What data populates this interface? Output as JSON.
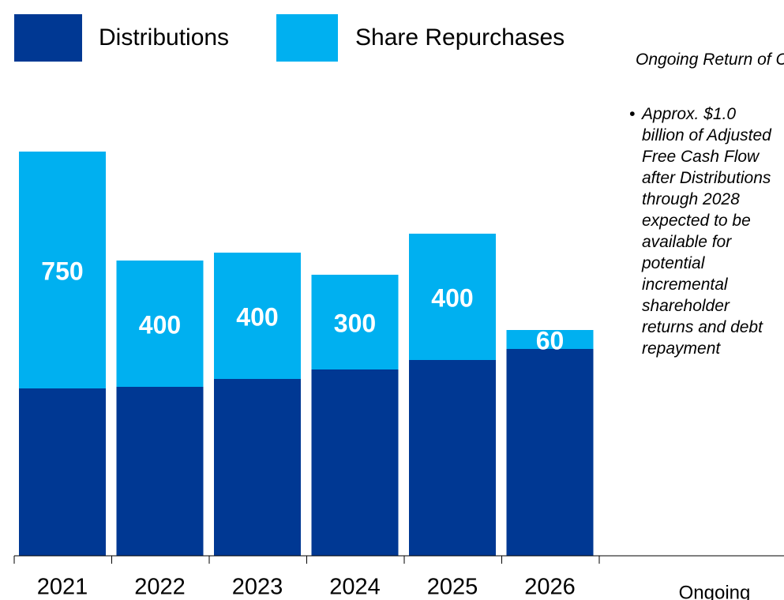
{
  "chart_data": {
    "type": "stacked_bar",
    "categories": [
      "2021",
      "2022",
      "2023",
      "2024",
      "2025",
      "2026",
      "Ongoing"
    ],
    "series": [
      {
        "name": "Distributions",
        "color": "#003893",
        "values": [
          530,
          535,
          560,
          590,
          620,
          655,
          null
        ]
      },
      {
        "name": "Share Repurchases",
        "color": "#00b0f0",
        "values": [
          750,
          400,
          400,
          300,
          400,
          60,
          null
        ]
      }
    ],
    "annotation_title": "Ongoing Return of Capital:",
    "annotation_text": "Approx. $1.0 billion of Adjusted Free Cash Flow after Distributions through 2028 expected to be available for potential incremental shareholder returns and debt repayment"
  }
}
